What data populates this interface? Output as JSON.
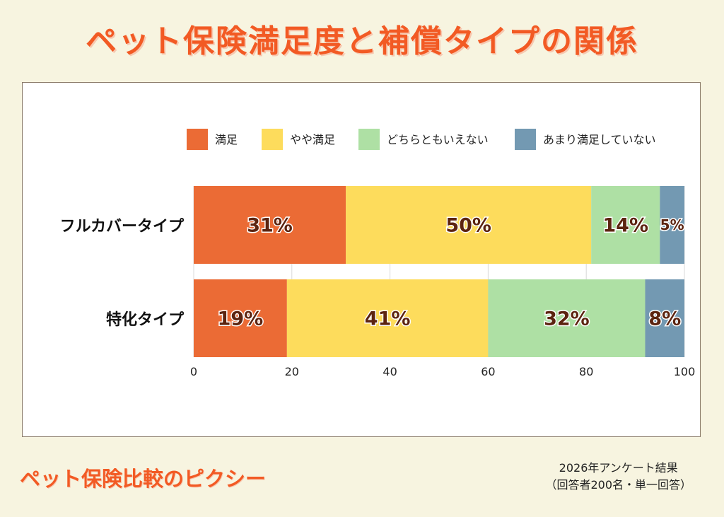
{
  "title": "ペット保険満足度と補償タイプの関係",
  "brand": "ペット保険比較のピクシー",
  "source_line1": "2026年アンケート結果",
  "source_line2": "（回答者200名・単一回答）",
  "colors": {
    "title": "#f25a24",
    "satisfied": "#eb6b35",
    "somewhat_satisfied": "#fddc5c",
    "neutral": "#aee0a4",
    "not_satisfied": "#7399b2",
    "label_text": "#5c2410"
  },
  "chart_data": {
    "type": "bar",
    "orientation": "horizontal",
    "stacked": true,
    "categories": [
      "フルカバータイプ",
      "特化タイプ"
    ],
    "series": [
      {
        "name": "満足",
        "color": "#eb6b35",
        "values": [
          31,
          19
        ]
      },
      {
        "name": "やや満足",
        "color": "#fddc5c",
        "values": [
          50,
          41
        ]
      },
      {
        "name": "どちらともいえない",
        "color": "#aee0a4",
        "values": [
          14,
          32
        ]
      },
      {
        "name": "あまり満足していない",
        "color": "#7399b2",
        "values": [
          5,
          8
        ]
      }
    ],
    "data_labels": [
      [
        "31%",
        "50%",
        "14%",
        "5%"
      ],
      [
        "19%",
        "41%",
        "32%",
        "8%"
      ]
    ],
    "xlim": [
      0,
      100
    ],
    "xticks": [
      "0",
      "20",
      "40",
      "60",
      "80",
      "100"
    ],
    "grid": true,
    "legend_position": "top-right"
  }
}
